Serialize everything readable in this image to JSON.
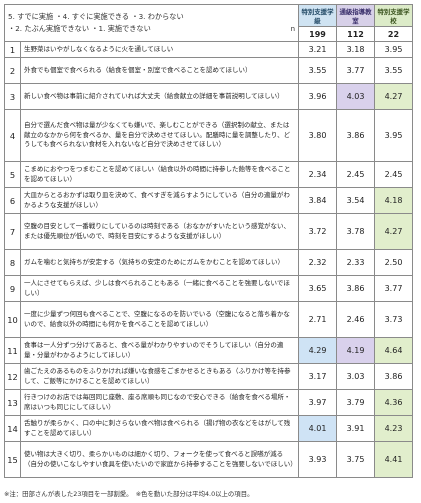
{
  "legend": {
    "line1": "5. すでに実施 ・4. すぐに実施できる ・3. わからない",
    "line2": "・2. たぶん実施できない ・1. 実施できない",
    "n_label": "n"
  },
  "columns": [
    {
      "label": "特別支援学級",
      "count": "199"
    },
    {
      "label": "通級指導教室",
      "count": "112"
    },
    {
      "label": "特別支援学校",
      "count": "22"
    }
  ],
  "rows": [
    {
      "no": "1",
      "text": "生野菜はいやがしなくなるように火を通してほしい",
      "values": [
        "3.21",
        "3.18",
        "3.95"
      ]
    },
    {
      "no": "2",
      "text": "外食でも個室で食べられる（給食を個室・別室で食べることを認めてほしい）",
      "values": [
        "3.55",
        "3.77",
        "3.55"
      ]
    },
    {
      "no": "3",
      "text": "新しい食べ物は事前に紹介されていれば大丈夫（給食献立の詳細を事前説明してほしい）",
      "values": [
        "3.96",
        "4.03",
        "4.27"
      ]
    },
    {
      "no": "4",
      "text": "自分で選んだ食べ物は量が少なくても嫌いで、楽しむことができる（選択制の献立、または献立のなかから何を食べるか、量を自分で決めさせてほしい。配膳時に量を調整したり、どうしても食べられない食材を入れないなど自分で決めさせてほしい）",
      "values": [
        "3.80",
        "3.86",
        "3.95"
      ]
    },
    {
      "no": "5",
      "text": "こまめにおやつをつまむことを認めてほしい（給食以外の時間に持参した飴等を食べることを認めてほしい）",
      "values": [
        "2.34",
        "2.45",
        "2.45"
      ]
    },
    {
      "no": "6",
      "text": "大皿からとるおかずは取り皿を決めて、食べすぎを減らすようにしている（自分の適量がわかるような支援がほしい）",
      "values": [
        "3.84",
        "3.54",
        "4.18"
      ]
    },
    {
      "no": "7",
      "text": "空腹の目安として一番戦りにしているのは時刻である（おなかがすいたという感覚がない、または優先順位が低いので、時刻を目安にするような支援がほしい）",
      "values": [
        "3.72",
        "3.78",
        "4.27"
      ]
    },
    {
      "no": "8",
      "text": "ガムを噛むと気持ちが安定する（気持ちの安定のためにガムをかむことを認めてほしい）",
      "values": [
        "2.32",
        "2.33",
        "2.50"
      ]
    },
    {
      "no": "9",
      "text": "一人にさせてもらえば、少しは食べられることもある（一緒に食べることを強要しないでほしい）",
      "values": [
        "3.65",
        "3.86",
        "3.77"
      ]
    },
    {
      "no": "10",
      "text": "一度に少量ずつ何回も食べることで、空腹になるのを防いでいる（空腹になると落ち着かないので、給食以外の時間にも何かを食べることを認めてほしい）",
      "values": [
        "2.71",
        "2.46",
        "3.73"
      ]
    },
    {
      "no": "11",
      "text": "食事は一人分ずつ分けてあると、食べる量がわかりやすいのでそうしてほしい（自分の適量・分量がわかるようにしてほしい）",
      "values": [
        "4.29",
        "4.19",
        "4.64"
      ]
    },
    {
      "no": "12",
      "text": "歯ごたえのあるものをふりかければ嫌いな食感をごまかせるときもある（ふりかけ等を持参して、ご飯等にかけることを認めてほしい）",
      "values": [
        "3.17",
        "3.03",
        "3.86"
      ]
    },
    {
      "no": "13",
      "text": "行きつけのお店では毎回同じ座敷、座る席順も同じなので安心できる（給食を食べる場所・席はいつも同じにしてほしい）",
      "values": [
        "3.97",
        "3.79",
        "4.36"
      ]
    },
    {
      "no": "14",
      "text": "舌触りが柔らかく、口の中に刺さらない食べ物は食べられる（揚げ物の衣などをはがして残すことを認めてほしい）",
      "values": [
        "4.01",
        "3.91",
        "4.23"
      ]
    },
    {
      "no": "15",
      "text": "使い物は大きく切り、柔らかいものは細かく切り、フォークを使って食べると誤嚥が減る（自分の使いこなしやすい食具を使いたいので家庭から持参することを強要しないでほしい）",
      "values": [
        "3.93",
        "3.75",
        "4.41"
      ]
    }
  ],
  "highlight_threshold": 4.0,
  "footnote": "※注：田部さんが表した23項目を一部割愛。　※色を動いた部分は平均4.0以上の項目。",
  "colors": {
    "col1_highlight": "#cfe3f5",
    "col2_highlight": "#d9d1ec",
    "col3_highlight": "#e1eecc"
  }
}
